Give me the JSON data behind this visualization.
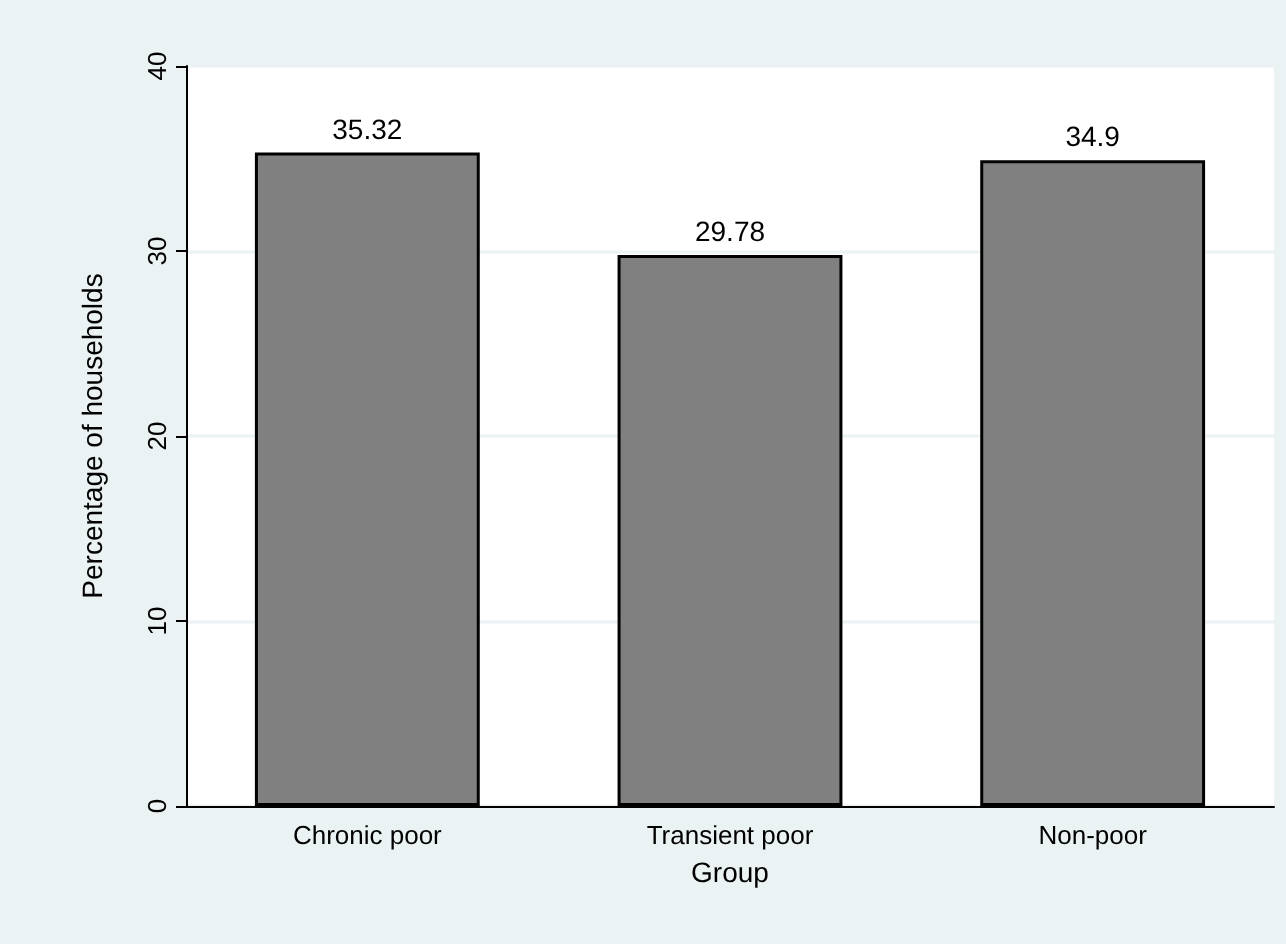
{
  "chart_data": {
    "type": "bar",
    "xlabel": "Group",
    "ylabel": "Percentage of households",
    "categories": [
      "Chronic poor",
      "Transient poor",
      "Non-poor"
    ],
    "values": [
      35.32,
      29.78,
      34.9
    ],
    "color": "#808080",
    "ylim": [
      0,
      40
    ],
    "yticks": [
      0,
      10,
      20,
      30,
      40
    ],
    "grid": "y",
    "data_labels": true
  }
}
